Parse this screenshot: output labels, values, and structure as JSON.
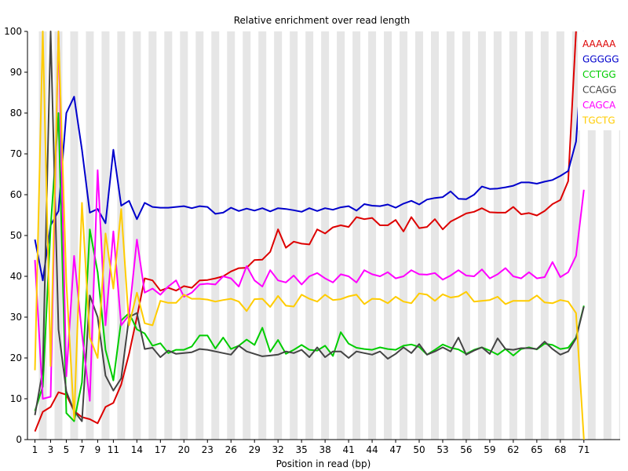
{
  "chart_data": {
    "type": "line",
    "title": "Relative enrichment over read length",
    "xlabel": "Position in read (bp)",
    "ylabel": "",
    "xlim": [
      1,
      71
    ],
    "ylim": [
      0,
      100
    ],
    "x_ticks": [
      "1",
      "3",
      "5",
      "7",
      "9",
      "11",
      "14",
      "17",
      "20",
      "23",
      "26",
      "29",
      "32",
      "35",
      "38",
      "41",
      "44",
      "47",
      "50",
      "53",
      "56",
      "59",
      "62",
      "65",
      "68",
      "71"
    ],
    "y_ticks": [
      "0",
      "10",
      "20",
      "30",
      "40",
      "50",
      "60",
      "70",
      "80",
      "90",
      "100"
    ],
    "grid": "alternating vertical bands",
    "legend_position": "top-right",
    "series": [
      {
        "name": "AAAAA",
        "color": "#dd0000",
        "values": [
          2,
          6.8,
          8,
          11.6,
          11,
          7,
          5.5,
          5,
          4,
          8,
          9,
          13.5,
          21,
          30,
          39.5,
          39,
          36.5,
          37.2,
          36.5,
          37.6,
          37.2,
          39,
          39.1,
          39.5,
          40,
          41.2,
          42,
          42.1,
          44,
          44.1,
          46,
          51.5,
          47,
          48.5,
          48,
          47.8,
          51.5,
          50.5,
          52,
          52.5,
          52.1,
          54.5,
          54,
          54.3,
          52.5,
          52.5,
          53.8,
          51,
          54.5,
          51.8,
          52.1,
          54,
          51.5,
          53.4,
          54.4,
          55.4,
          55.8,
          56.7,
          55.7,
          55.6,
          55.6,
          57,
          55.2,
          55.5,
          54.9,
          56,
          57.7,
          58.7,
          63.3,
          100
        ]
      },
      {
        "name": "GGGGG",
        "color": "#0000cc",
        "values": [
          49,
          39,
          52.5,
          56,
          80,
          84,
          71,
          55.6,
          56.5,
          53,
          71,
          57.3,
          58.5,
          54,
          58,
          57,
          56.8,
          56.8,
          57,
          57.2,
          56.7,
          57.2,
          57,
          55.3,
          55.6,
          56.8,
          56,
          56.6,
          56.1,
          56.7,
          55.9,
          56.7,
          56.5,
          56.2,
          55.8,
          56.7,
          56,
          56.7,
          56.3,
          56.9,
          57.2,
          56.1,
          57.7,
          57.3,
          57.2,
          57.6,
          56.8,
          57.8,
          58.5,
          57.6,
          58.8,
          59.2,
          59.4,
          60.8,
          59,
          58.9,
          60,
          62,
          61.4,
          61.5,
          61.8,
          62.2,
          63,
          63,
          62.7,
          63.2,
          63.6,
          64.6,
          65.8,
          73,
          100
        ]
      },
      {
        "name": "CCTGG",
        "color": "#00cc00",
        "values": [
          7,
          13,
          52,
          80,
          6.5,
          4.5,
          14,
          51.5,
          41,
          22,
          14.5,
          29.2,
          31,
          27,
          26,
          23,
          23.6,
          21.2,
          22,
          22,
          22.8,
          25.5,
          25.5,
          22.3,
          25,
          22.2,
          23,
          24.5,
          23.2,
          27.4,
          21.5,
          24.4,
          21,
          22,
          23.2,
          22,
          21.8,
          23,
          20.5,
          26.3,
          23.5,
          22.5,
          22.2,
          22,
          22.6,
          22.2,
          22,
          23,
          23.3,
          22.7,
          20.8,
          22,
          23.3,
          22.5,
          22.1,
          21,
          22,
          22.6,
          21.8,
          20.8,
          22.2,
          20.6,
          22.2,
          22.6,
          22.1,
          23.5,
          23.2,
          22.2,
          22.5,
          25,
          32.8
        ]
      },
      {
        "name": "CCAGG",
        "color": "#444444",
        "values": [
          6,
          17,
          100,
          27,
          11.8,
          7,
          4.5,
          35.3,
          30,
          15.7,
          12,
          15,
          30,
          31,
          22.2,
          22.5,
          20.2,
          21.8,
          21,
          21.2,
          21.4,
          22.2,
          22,
          21.6,
          21.2,
          20.8,
          23,
          21.6,
          21,
          20.4,
          20.6,
          20.8,
          21.6,
          21.2,
          22,
          20.2,
          22.6,
          20.2,
          21.6,
          21.6,
          20,
          21.6,
          21.2,
          20.8,
          21.6,
          19.8,
          21,
          22.6,
          21.2,
          23.4,
          20.8,
          21.6,
          22.6,
          21.6,
          25,
          20.8,
          21.8,
          22.6,
          21,
          24.8,
          22.2,
          22,
          22.4,
          22.4,
          22.2,
          24,
          22.2,
          20.8,
          21.6,
          24.8,
          32.6
        ]
      },
      {
        "name": "CAGCA",
        "color": "#ff00ff",
        "values": [
          44,
          10,
          10.5,
          100,
          15.5,
          45,
          26,
          9.5,
          66,
          28,
          51,
          28,
          30.5,
          49,
          36,
          37,
          35.5,
          37.5,
          39,
          35,
          36,
          38,
          38.2,
          38,
          40,
          39.5,
          37.5,
          42.5,
          39,
          37.5,
          41.5,
          39,
          38.5,
          40.2,
          38,
          40,
          40.8,
          39.5,
          38.5,
          40.5,
          40,
          38.5,
          41.5,
          40.5,
          40,
          41,
          39.5,
          40,
          41.5,
          40.5,
          40.4,
          40.8,
          39.2,
          40.2,
          41.5,
          40.2,
          40,
          41.7,
          39.5,
          40.5,
          42,
          40,
          39.5,
          41,
          39.5,
          39.8,
          43.5,
          39.8,
          41,
          45,
          61.2
        ]
      },
      {
        "name": "TGCTG",
        "color": "#ffcc00",
        "values": [
          17,
          100,
          18,
          100,
          38.5,
          5,
          58,
          25,
          20,
          50.5,
          37,
          56.5,
          28,
          36,
          28.5,
          28,
          34,
          33.5,
          33.5,
          35.5,
          34.5,
          34.5,
          34.3,
          33.8,
          34.2,
          34.5,
          33.8,
          31.5,
          34.4,
          34.5,
          32.5,
          35.2,
          32.8,
          32.6,
          35.5,
          34.5,
          33.8,
          35.5,
          34.2,
          34.4,
          35.1,
          35.5,
          33.2,
          34.5,
          34.4,
          33.4,
          35,
          33.8,
          33.4,
          35.8,
          35.5,
          34,
          35.6,
          34.8,
          35.1,
          36.2,
          33.8,
          34,
          34.2,
          35,
          33.2,
          34,
          34,
          34,
          35.3,
          33.6,
          33.4,
          34.2,
          33.8,
          31,
          0
        ]
      }
    ]
  }
}
